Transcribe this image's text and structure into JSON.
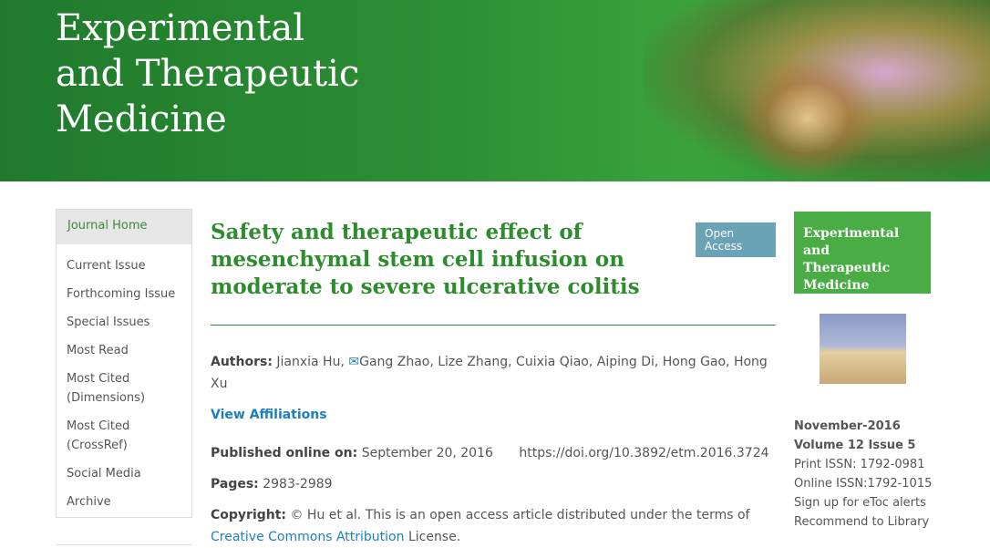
{
  "header": {
    "journal_title": [
      "Experimental",
      "and Therapeutic",
      "Medicine"
    ]
  },
  "sidebar": {
    "items": [
      "Journal Home",
      "Current Issue",
      "Forthcoming Issue",
      "Special Issues",
      "Most Read",
      "Most Cited (Dimensions)",
      "Most Cited (CrossRef)",
      "Social Media",
      "Archive"
    ]
  },
  "article": {
    "title": "Safety and therapeutic effect of mesenchymal stem cell infusion on moderate to severe ulcerative colitis",
    "badge": "Open Access",
    "authors_label": "Authors:",
    "author_first": "Jianxia Hu,",
    "authors_rest": "Gang Zhao, Lize Zhang, Cuixia Qiao, Aiping Di, Hong Gao, Hong Xu",
    "view_affiliations": "View Affiliations",
    "published_label": "Published online on:",
    "published_date": "September 20, 2016",
    "doi": "https://doi.org/10.3892/etm.2016.3724",
    "pages_label": "Pages:",
    "pages": "2983-2989",
    "copyright_label": "Copyright:",
    "copyright_text": "© Hu et al. This is an open access article distributed under the terms of",
    "license_link": "Creative Commons Attribution",
    "license_suffix": "License."
  },
  "issue": {
    "cover_title": [
      "Experimental and",
      "Therapeutic",
      "Medicine"
    ],
    "date": "November-2016",
    "volume": "Volume 12 Issue 5",
    "print_issn": "Print ISSN: 1792-0981",
    "online_issn": "Online ISSN:1792-1015",
    "etoc": "Sign up for eToc alerts",
    "recommend": "Recommend to Library"
  },
  "colors": {
    "green": "#2e8b2e",
    "badge": "#6aa3b5",
    "link": "#1a7fc1"
  }
}
